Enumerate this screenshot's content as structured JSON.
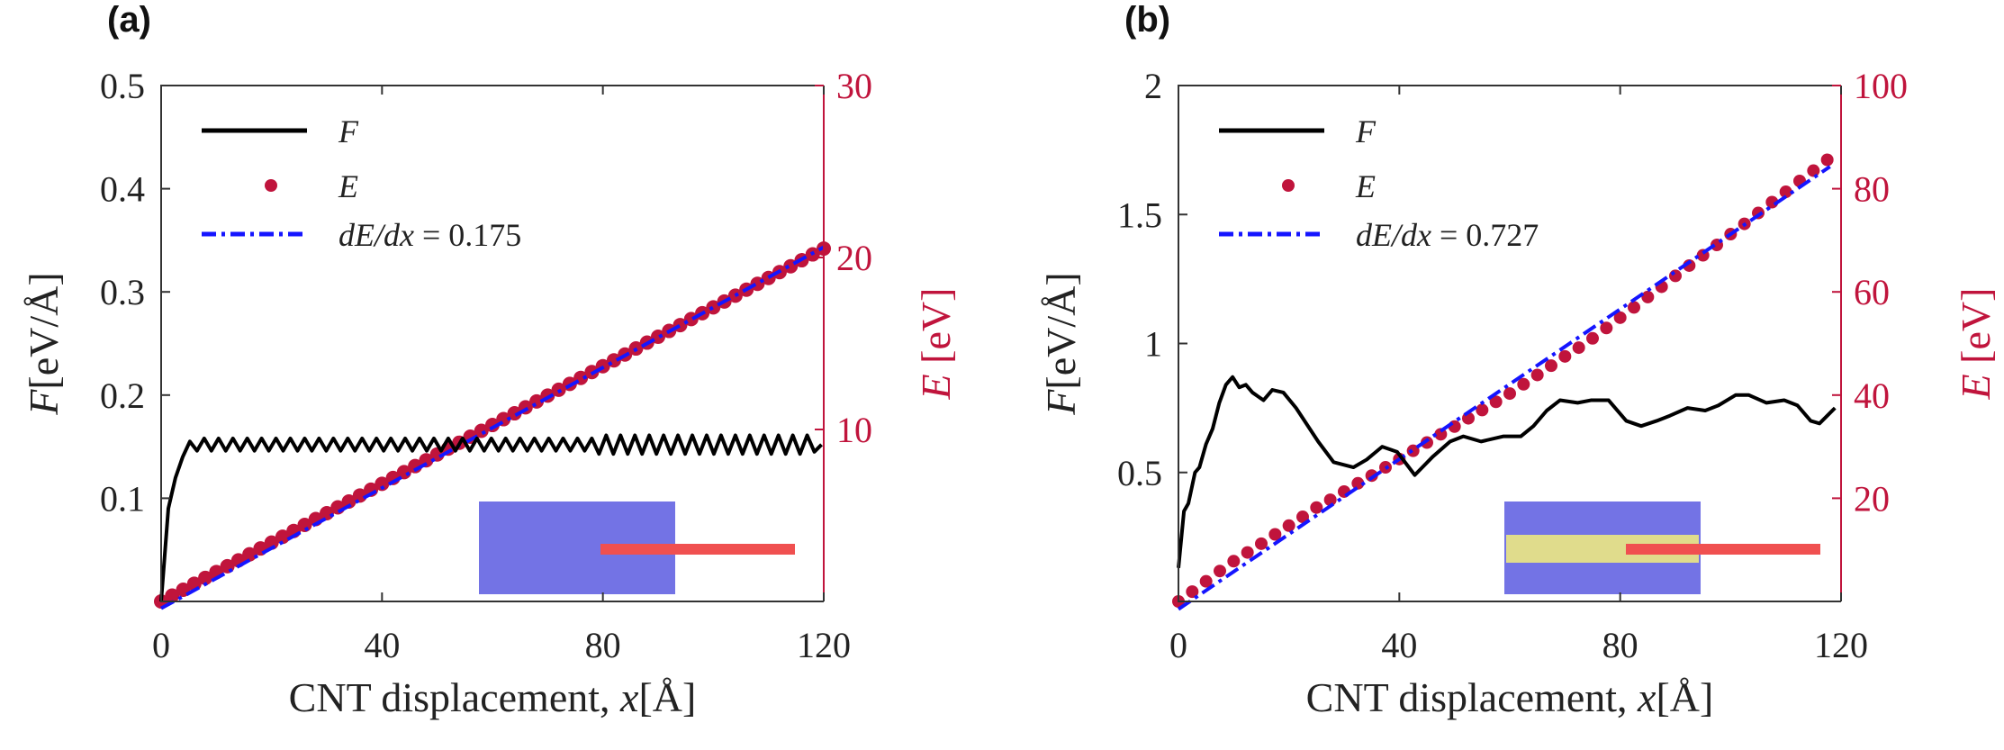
{
  "colors": {
    "F": "#000000",
    "E": "#c0143c",
    "fit": "#1515ff",
    "inset_outer": "#5a5ae0",
    "inset_inner": "#e0dc8c",
    "inset_cnt": "#f05050"
  },
  "chart_data": [
    {
      "panel_label": "(a)",
      "type": "line",
      "xlabel": {
        "text": "CNT displacement, ",
        "var": "x",
        "unit": "[Å]"
      },
      "ylabel_left": {
        "var": "F",
        "unit": "[eV/Å]"
      },
      "ylabel_right": {
        "var": "E",
        "unit": " [eV]"
      },
      "xlim": [
        0,
        120
      ],
      "ylim_left": [
        0,
        0.5
      ],
      "ylim_right": [
        0,
        30
      ],
      "xticks": [
        "0",
        "40",
        "80",
        "120"
      ],
      "yticks_left": [
        "0.1",
        "0.2",
        "0.3",
        "0.4",
        "0.5"
      ],
      "yticks_right": [
        "10",
        "20",
        "30"
      ],
      "legend": {
        "placement": "top-left",
        "entries": [
          {
            "var": "F",
            "text": ""
          },
          {
            "var": "E",
            "text": ""
          },
          {
            "var": "dE/dx",
            "text": " = 0.175"
          }
        ]
      },
      "F": {
        "x_start": 0,
        "x_step": 1.3,
        "values": [
          0,
          0.09,
          0.12,
          0.14,
          0.155,
          0.146,
          0.158,
          0.146,
          0.158,
          0.146,
          0.158,
          0.146,
          0.158,
          0.146,
          0.158,
          0.146,
          0.158,
          0.146,
          0.158,
          0.146,
          0.158,
          0.146,
          0.158,
          0.146,
          0.158,
          0.146,
          0.158,
          0.146,
          0.158,
          0.146,
          0.158,
          0.146,
          0.158,
          0.146,
          0.158,
          0.146,
          0.158,
          0.146,
          0.158,
          0.146,
          0.158,
          0.146,
          0.158,
          0.146,
          0.158,
          0.146,
          0.158,
          0.146,
          0.158,
          0.146,
          0.158,
          0.146,
          0.158,
          0.146,
          0.158,
          0.146,
          0.158,
          0.146,
          0.158,
          0.146,
          0.158,
          0.143,
          0.161,
          0.143,
          0.161,
          0.143,
          0.161,
          0.143,
          0.161,
          0.143,
          0.161,
          0.143,
          0.161,
          0.143,
          0.161,
          0.143,
          0.161,
          0.143,
          0.161,
          0.143,
          0.161,
          0.143,
          0.161,
          0.143,
          0.161,
          0.143,
          0.161,
          0.143,
          0.161,
          0.143,
          0.161,
          0.145,
          0.152
        ]
      },
      "E": {
        "x_start": 0,
        "x_step": 2,
        "values": [
          0,
          0.34,
          0.68,
          1.03,
          1.37,
          1.71,
          2.05,
          2.39,
          2.74,
          3.08,
          3.42,
          3.76,
          4.1,
          4.45,
          4.79,
          5.13,
          5.47,
          5.81,
          6.16,
          6.5,
          6.84,
          7.18,
          7.52,
          7.87,
          8.21,
          8.55,
          8.89,
          9.23,
          9.58,
          9.92,
          10.26,
          10.6,
          10.94,
          11.29,
          11.63,
          11.97,
          12.31,
          12.65,
          13.0,
          13.34,
          13.68,
          14.02,
          14.36,
          14.71,
          15.05,
          15.39,
          15.73,
          16.07,
          16.42,
          16.76,
          17.1,
          17.44,
          17.78,
          18.13,
          18.47,
          18.81,
          19.15,
          19.49,
          19.84,
          20.18,
          20.52
        ]
      },
      "fit": {
        "slope": 0.175,
        "intercept": -0.4,
        "x_range": [
          0,
          120
        ]
      },
      "inset": {
        "inner_band": false
      }
    },
    {
      "panel_label": "(b)",
      "type": "line",
      "xlabel": {
        "text": "CNT displacement, ",
        "var": "x",
        "unit": "[Å]"
      },
      "ylabel_left": {
        "var": "F",
        "unit": "[eV/Å]"
      },
      "ylabel_right": {
        "var": "E",
        "unit": " [eV]"
      },
      "xlim": [
        0,
        120
      ],
      "ylim_left": [
        0,
        2
      ],
      "ylim_right": [
        0,
        100
      ],
      "xticks": [
        "0",
        "40",
        "80",
        "120"
      ],
      "yticks_left": [
        "0.5",
        "1",
        "1.5",
        "2"
      ],
      "yticks_right": [
        "20",
        "40",
        "60",
        "80",
        "100"
      ],
      "legend": {
        "placement": "top-left",
        "entries": [
          {
            "var": "F",
            "text": ""
          },
          {
            "var": "E",
            "text": ""
          },
          {
            "var": "dE/dx",
            "text": " = 0.727"
          }
        ]
      },
      "F": {
        "points": [
          [
            0,
            0.13
          ],
          [
            1,
            0.35
          ],
          [
            1.8,
            0.38
          ],
          [
            3,
            0.5
          ],
          [
            3.8,
            0.52
          ],
          [
            5,
            0.61
          ],
          [
            6.2,
            0.67
          ],
          [
            7.4,
            0.77
          ],
          [
            8.6,
            0.84
          ],
          [
            9.8,
            0.87
          ],
          [
            11,
            0.83
          ],
          [
            12.2,
            0.84
          ],
          [
            13.4,
            0.81
          ],
          [
            15.4,
            0.78
          ],
          [
            17,
            0.82
          ],
          [
            19,
            0.81
          ],
          [
            21.3,
            0.75
          ],
          [
            25.3,
            0.62
          ],
          [
            28.1,
            0.54
          ],
          [
            31.7,
            0.52
          ],
          [
            34.1,
            0.55
          ],
          [
            36.9,
            0.6
          ],
          [
            39.6,
            0.58
          ],
          [
            42.8,
            0.49
          ],
          [
            46,
            0.56
          ],
          [
            49.2,
            0.62
          ],
          [
            51.6,
            0.64
          ],
          [
            54.8,
            0.62
          ],
          [
            58.8,
            0.64
          ],
          [
            62,
            0.64
          ],
          [
            64.3,
            0.68
          ],
          [
            66.7,
            0.74
          ],
          [
            69.1,
            0.78
          ],
          [
            72.3,
            0.77
          ],
          [
            74.7,
            0.78
          ],
          [
            77.9,
            0.78
          ],
          [
            81.1,
            0.7
          ],
          [
            83.8,
            0.68
          ],
          [
            86.6,
            0.7
          ],
          [
            89,
            0.72
          ],
          [
            92.2,
            0.75
          ],
          [
            95.4,
            0.74
          ],
          [
            97.8,
            0.76
          ],
          [
            100.9,
            0.8
          ],
          [
            103.3,
            0.8
          ],
          [
            106.5,
            0.77
          ],
          [
            109.7,
            0.78
          ],
          [
            112.1,
            0.76
          ],
          [
            114.5,
            0.7
          ],
          [
            116.1,
            0.69
          ],
          [
            118.9,
            0.75
          ]
        ]
      },
      "E": {
        "x_start": 0,
        "x_step": 2.5,
        "values": [
          0,
          1.9,
          3.9,
          5.9,
          7.8,
          9.5,
          11.2,
          13.0,
          14.7,
          16.4,
          18.2,
          19.7,
          21.3,
          22.9,
          24.4,
          26.0,
          27.6,
          29.2,
          30.8,
          32.4,
          33.9,
          35.5,
          37.1,
          38.7,
          40.3,
          42.1,
          43.9,
          45.7,
          47.5,
          49.2,
          51.0,
          53.0,
          55.0,
          57.0,
          59.0,
          61.0,
          63.1,
          65.1,
          67.1,
          69.1,
          71.2,
          73.2,
          75.3,
          77.4,
          79.4,
          81.5,
          83.5,
          85.6
        ]
      },
      "fit": {
        "slope": 0.727,
        "intercept": -1.5,
        "x_range": [
          0,
          118
        ]
      },
      "inset": {
        "inner_band": true
      }
    }
  ]
}
